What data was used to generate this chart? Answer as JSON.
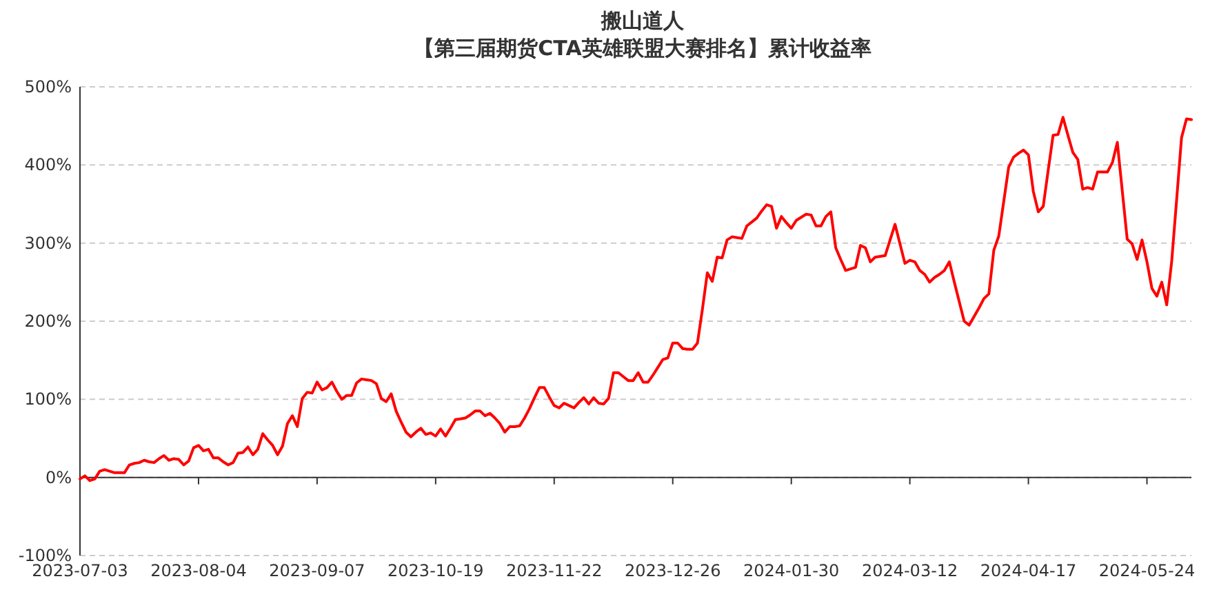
{
  "chart_data": {
    "type": "line",
    "title": "搬山道人",
    "subtitle": "【第三届期货CTA英雄联盟大赛排名】累计收益率",
    "categories": [
      "2023-07-03",
      null,
      null,
      null,
      null,
      null,
      null,
      null,
      null,
      null,
      null,
      null,
      null,
      null,
      null,
      null,
      null,
      null,
      null,
      null,
      null,
      null,
      null,
      null,
      "2023-08-04",
      null,
      null,
      null,
      null,
      null,
      null,
      null,
      null,
      null,
      null,
      null,
      null,
      null,
      null,
      null,
      null,
      null,
      null,
      null,
      null,
      null,
      null,
      null,
      "2023-09-07",
      null,
      null,
      null,
      null,
      null,
      null,
      null,
      null,
      null,
      null,
      null,
      null,
      null,
      null,
      null,
      null,
      null,
      null,
      null,
      null,
      null,
      null,
      null,
      "2023-10-19",
      null,
      null,
      null,
      null,
      null,
      null,
      null,
      null,
      null,
      null,
      null,
      null,
      null,
      null,
      null,
      null,
      null,
      null,
      null,
      null,
      null,
      null,
      null,
      "2023-11-22",
      null,
      null,
      null,
      null,
      null,
      null,
      null,
      null,
      null,
      null,
      null,
      null,
      null,
      null,
      null,
      null,
      null,
      null,
      null,
      null,
      null,
      null,
      null,
      "2023-12-26",
      null,
      null,
      null,
      null,
      null,
      null,
      null,
      null,
      null,
      null,
      null,
      null,
      null,
      null,
      null,
      null,
      null,
      null,
      null,
      null,
      null,
      null,
      null,
      "2024-01-30",
      null,
      null,
      null,
      null,
      null,
      null,
      null,
      null,
      null,
      null,
      null,
      null,
      null,
      null,
      null,
      null,
      null,
      null,
      null,
      null,
      null,
      null,
      null,
      "2024-03-12",
      null,
      null,
      null,
      null,
      null,
      null,
      null,
      null,
      null,
      null,
      null,
      null,
      null,
      null,
      null,
      null,
      null,
      null,
      null,
      null,
      null,
      null,
      null,
      "2024-04-17",
      null,
      null,
      null,
      null,
      null,
      null,
      null,
      null,
      null,
      null,
      null,
      null,
      null,
      null,
      null,
      null,
      null,
      null,
      null,
      null,
      null,
      null,
      null,
      "2024-05-24",
      null,
      null,
      null,
      null,
      null,
      null,
      null,
      null,
      null
    ],
    "ylim": [
      -100,
      500
    ],
    "yticks": [
      {
        "value": -100,
        "label": "-100%"
      },
      {
        "value": 0,
        "label": "0%"
      },
      {
        "value": 100,
        "label": "100%"
      },
      {
        "value": 200,
        "label": "200%"
      },
      {
        "value": 300,
        "label": "300%"
      },
      {
        "value": 400,
        "label": "400%"
      },
      {
        "value": 500,
        "label": "500%"
      }
    ],
    "grid": "y",
    "series": [
      {
        "color": "#ff0000",
        "values": [
          -2,
          2,
          -4,
          -2,
          8,
          10,
          8,
          6,
          6,
          6,
          16,
          18,
          19,
          22,
          20,
          19,
          24,
          28,
          22,
          24,
          23,
          16,
          21,
          38,
          41,
          34,
          36,
          25,
          25,
          20,
          16,
          19,
          31,
          32,
          39,
          29,
          36,
          56,
          48,
          41,
          29,
          40,
          69,
          79,
          65,
          101,
          109,
          108,
          122,
          112,
          115,
          122,
          110,
          100,
          105,
          105,
          121,
          126,
          125,
          124,
          120,
          101,
          97,
          107,
          85,
          71,
          58,
          52,
          58,
          63,
          55,
          57,
          53,
          62,
          53,
          63,
          74,
          75,
          76,
          80,
          85,
          85,
          79,
          82,
          76,
          69,
          58,
          65,
          65,
          66,
          76,
          88,
          102,
          115,
          115,
          103,
          92,
          89,
          95,
          92,
          89,
          96,
          102,
          94,
          102,
          95,
          94,
          101,
          134,
          134,
          129,
          124,
          124,
          134,
          122,
          122,
          131,
          141,
          151,
          153,
          172,
          172,
          165,
          164,
          164,
          172,
          215,
          262,
          251,
          282,
          281,
          304,
          308,
          307,
          306,
          322,
          327,
          332,
          341,
          349,
          347,
          319,
          334,
          326,
          319,
          329,
          333,
          337,
          336,
          322,
          322,
          334,
          340,
          294,
          279,
          265,
          267,
          269,
          297,
          294,
          276,
          282,
          283,
          284,
          304,
          324,
          299,
          274,
          278,
          276,
          265,
          260,
          250,
          256,
          260,
          265,
          276,
          250,
          225,
          200,
          195,
          206,
          217,
          229,
          235,
          291,
          309,
          353,
          397,
          410,
          415,
          419,
          413,
          366,
          340,
          347,
          393,
          438,
          439,
          461,
          438,
          416,
          407,
          369,
          371,
          369,
          391,
          391,
          391,
          403,
          429,
          367,
          305,
          299,
          279,
          304,
          276,
          242,
          232,
          250,
          221,
          276,
          355,
          435,
          459,
          458
        ]
      }
    ]
  }
}
